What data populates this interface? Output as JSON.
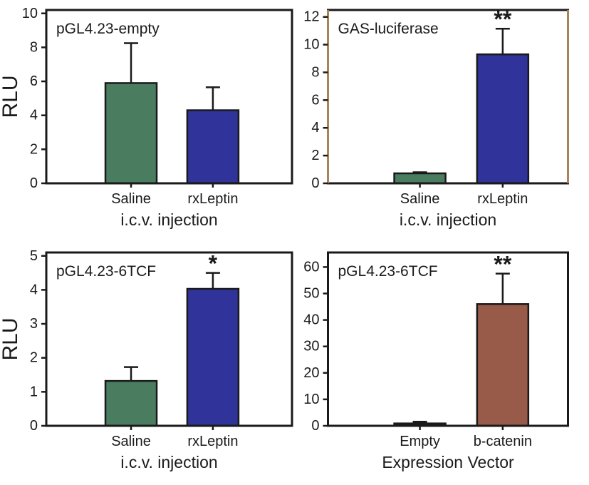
{
  "figure": {
    "background_color": "#ffffff",
    "text_color": "#1a1a1a",
    "axis_color": "#1a1a1a",
    "accent_colors": {
      "saline_green": "#4a7c60",
      "leptin_blue": "#2f339a",
      "bcatenin_brown": "#985a49",
      "empty_black": "#1a1a1a",
      "panel_b_side_border": "#a8845c"
    }
  },
  "chart_data": [
    {
      "type": "bar",
      "title": "pGL4.23-empty",
      "ylabel": "RLU",
      "xlabel": "i.c.v. injection",
      "categories": [
        "Saline",
        "rxLeptin"
      ],
      "values": [
        5.9,
        4.3
      ],
      "errors": [
        2.35,
        1.35
      ],
      "significance": [
        "",
        ""
      ],
      "bar_colors": [
        "#4a7c60",
        "#2f339a"
      ],
      "yticks": [
        0,
        2,
        4,
        6,
        8,
        10
      ],
      "ylim": [
        0,
        10.2
      ],
      "grid": "off",
      "panel_side": "left",
      "frame_color": "#1a1a1a",
      "side_border_color": "#1a1a1a"
    },
    {
      "type": "bar",
      "title": "GAS-luciferase",
      "ylabel": "",
      "xlabel": "i.c.v. injection",
      "categories": [
        "Saline",
        "rxLeptin"
      ],
      "values": [
        0.72,
        9.3
      ],
      "errors": [
        0.08,
        1.85
      ],
      "significance": [
        "",
        "**"
      ],
      "bar_colors": [
        "#4a7c60",
        "#2f339a"
      ],
      "yticks": [
        0,
        2,
        4,
        6,
        8,
        10,
        12
      ],
      "ylim": [
        0,
        12.5
      ],
      "grid": "off",
      "panel_side": "right",
      "frame_color": "#1a1a1a",
      "side_border_color": "#a8845c"
    },
    {
      "type": "bar",
      "title": "pGL4.23-6TCF",
      "ylabel": "RLU",
      "xlabel": "i.c.v. injection",
      "categories": [
        "Saline",
        "rxLeptin"
      ],
      "values": [
        1.32,
        4.03
      ],
      "errors": [
        0.41,
        0.47
      ],
      "significance": [
        "",
        "*"
      ],
      "bar_colors": [
        "#4a7c60",
        "#2f339a"
      ],
      "yticks": [
        0,
        1,
        2,
        3,
        4,
        5
      ],
      "ylim": [
        0,
        5.1
      ],
      "grid": "off",
      "panel_side": "left",
      "frame_color": "#1a1a1a",
      "side_border_color": "#1a1a1a"
    },
    {
      "type": "bar",
      "title": "pGL4.23-6TCF",
      "ylabel": "",
      "xlabel": "Expression Vector",
      "categories": [
        "Empty",
        "b-catenin"
      ],
      "values": [
        0.9,
        46
      ],
      "errors": [
        0.65,
        11.5
      ],
      "significance": [
        "",
        "**"
      ],
      "bar_colors": [
        "#1a1a1a",
        "#985a49"
      ],
      "yticks": [
        0,
        10,
        20,
        30,
        40,
        50,
        60
      ],
      "ylim": [
        0,
        65.5
      ],
      "grid": "off",
      "panel_side": "right",
      "frame_color": "#1a1a1a",
      "side_border_color": "#1a1a1a"
    }
  ]
}
